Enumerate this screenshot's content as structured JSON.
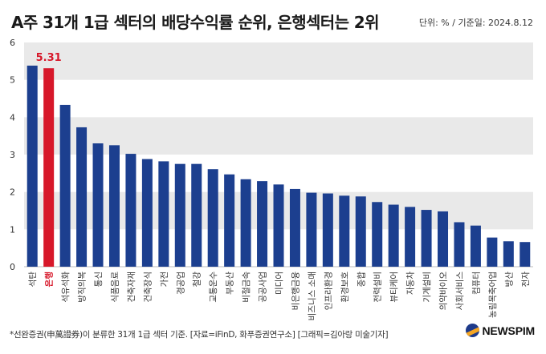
{
  "header": {
    "title": "A주 31개 1급 섹터의 배당수익률 순위, 은행섹터는 2위",
    "unit_note": "단위: % / 기준일: 2024.8.12"
  },
  "footer": {
    "note": "*선완증권(申萬證券)이 분류한 31개 1급 섹터 기준. [자료=iFinD, 화푸증권연구소] [그래픽=김아랑 미술기자]",
    "brand": "NEWSPIM"
  },
  "colors": {
    "bar": "#1c3f8f",
    "highlight": "#d7182a",
    "band": "#e9e9e9"
  },
  "chart_data": {
    "type": "bar",
    "categories": [
      "석탄",
      "은행",
      "석유석화",
      "방직의복",
      "통신",
      "식품음료",
      "건축자재",
      "건축장식",
      "가전",
      "경공업",
      "철강",
      "교통운수",
      "부동산",
      "비철금속",
      "공공사업",
      "미디어",
      "비은행금융",
      "비즈니스 소매",
      "인프라환경",
      "환경보호",
      "종합",
      "전력설비",
      "뷰티케어",
      "자동차",
      "기계설비",
      "의약바이오",
      "사회서비스",
      "컴퓨터",
      "농림목축어업",
      "방산",
      "전자"
    ],
    "values": [
      5.38,
      5.31,
      4.33,
      3.73,
      3.3,
      3.25,
      3.02,
      2.88,
      2.82,
      2.75,
      2.75,
      2.61,
      2.47,
      2.34,
      2.29,
      2.2,
      2.08,
      1.98,
      1.96,
      1.9,
      1.88,
      1.73,
      1.66,
      1.6,
      1.52,
      1.48,
      1.19,
      1.1,
      0.78,
      0.68,
      0.66
    ],
    "highlight_index": 1,
    "data_labels": [
      {
        "index": 1,
        "text": "5.31"
      }
    ],
    "ylim": [
      0,
      6
    ],
    "yticks": [
      "0",
      "1",
      "2",
      "3",
      "4",
      "5",
      "6"
    ],
    "grid": "alternating horizontal bands"
  }
}
